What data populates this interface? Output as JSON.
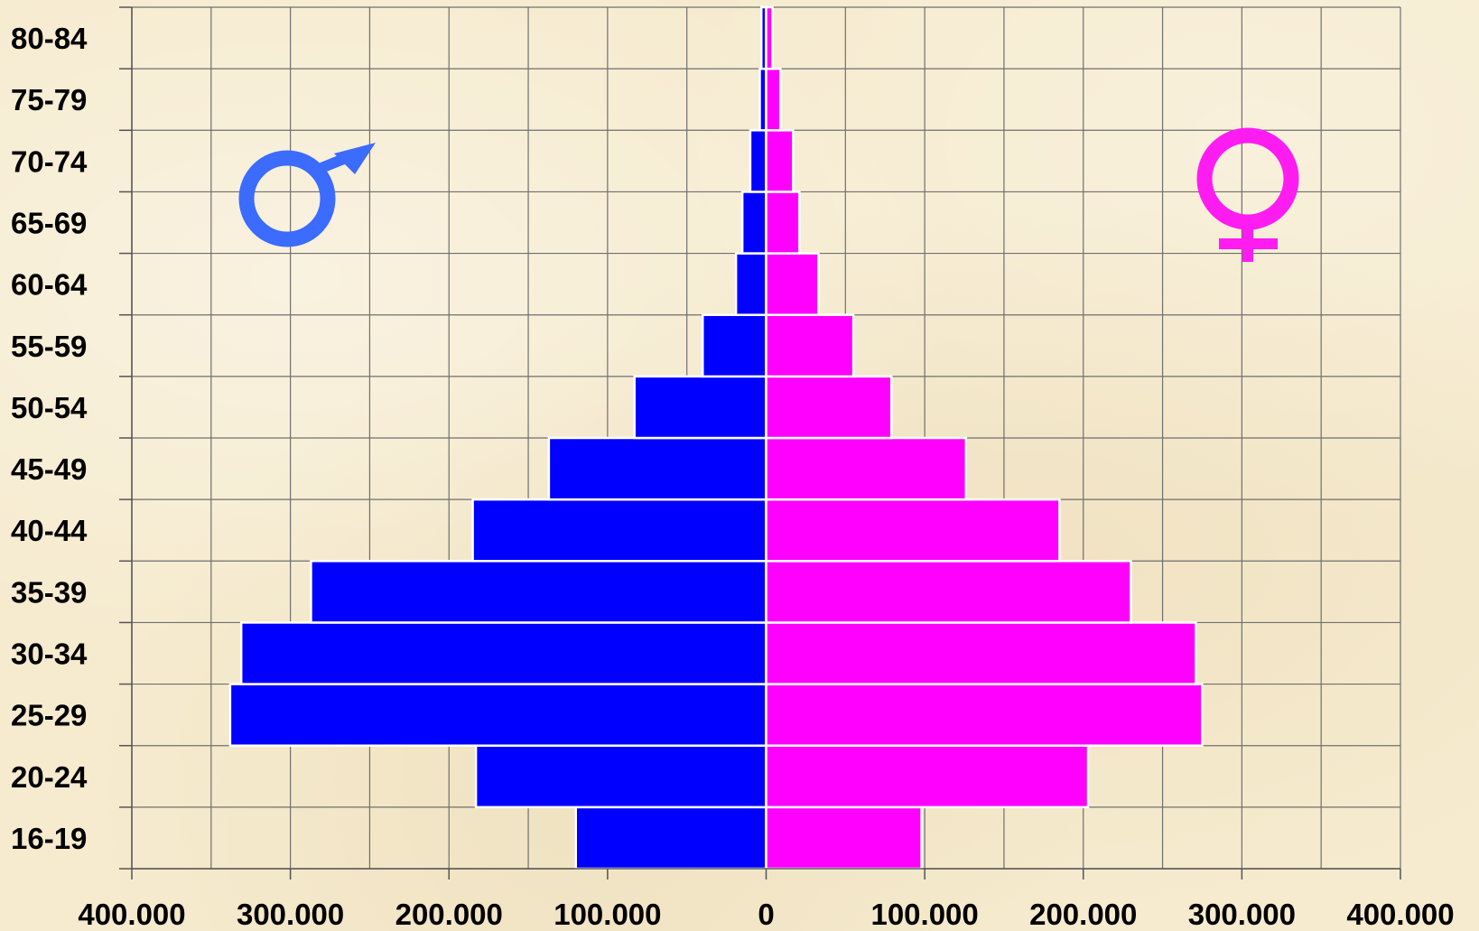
{
  "chart_data": {
    "type": "bar",
    "orientation": "horizontal",
    "layout": "population-pyramid",
    "categories": [
      "16-19",
      "20-24",
      "25-29",
      "30-34",
      "35-39",
      "40-44",
      "45-49",
      "50-54",
      "55-59",
      "60-64",
      "65-69",
      "70-74",
      "75-79",
      "80-84"
    ],
    "series": [
      {
        "symbol": "male-symbol",
        "color": "#0000ff",
        "side": "left",
        "values": [
          120000,
          183000,
          338000,
          331000,
          287000,
          185000,
          137000,
          83000,
          40000,
          19000,
          15000,
          10000,
          4000,
          3000
        ]
      },
      {
        "symbol": "female-symbol",
        "color": "#ff00ff",
        "side": "right",
        "values": [
          98000,
          203000,
          275000,
          271000,
          230000,
          185000,
          126000,
          79000,
          55000,
          33000,
          21000,
          17000,
          9000,
          4000
        ]
      }
    ],
    "xlim": [
      -400000,
      400000
    ],
    "xticks": [
      -400000,
      -300000,
      -200000,
      -100000,
      0,
      100000,
      200000,
      300000,
      400000
    ],
    "xtick_labels": [
      "400.000",
      "300.000",
      "200.000",
      "100.000",
      "0",
      "100.000",
      "200.000",
      "300.000",
      "400.000"
    ],
    "grid": true,
    "title": "",
    "xlabel": "",
    "ylabel": ""
  },
  "symbols": {
    "male": {
      "icon": "male-symbol-icon",
      "color": "#3b6bff"
    },
    "female": {
      "icon": "female-symbol-icon",
      "color": "#ff1cf0"
    }
  }
}
